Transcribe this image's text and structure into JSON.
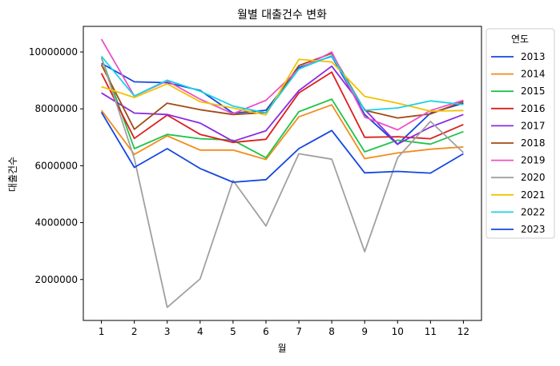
{
  "chart_data": {
    "type": "line",
    "title": "월별 대출건수 변화",
    "xlabel": "월",
    "ylabel": "대출건수",
    "x": [
      1,
      2,
      3,
      4,
      5,
      6,
      7,
      8,
      9,
      10,
      11,
      12
    ],
    "xlim": [
      0.45,
      12.55
    ],
    "ylim": [
      560000,
      10900000
    ],
    "yticks": [
      2000000,
      4000000,
      6000000,
      8000000,
      10000000
    ],
    "grid": false,
    "legend": {
      "title": "연도",
      "placement": "outside-right-top"
    },
    "series": [
      {
        "name": "2013",
        "color": "#1447e0",
        "values": [
          9600000,
          8950000,
          8920000,
          8650000,
          7850000,
          7950000,
          9450000,
          9850000,
          7800000,
          6750000,
          7850000,
          8200000
        ]
      },
      {
        "name": "2014",
        "color": "#f28c1a",
        "values": [
          7950000,
          6400000,
          7050000,
          6550000,
          6550000,
          6220000,
          7720000,
          8140000,
          6250000,
          6450000,
          6580000,
          6660000
        ]
      },
      {
        "name": "2015",
        "color": "#1ec44a",
        "values": [
          9800000,
          6600000,
          7100000,
          6950000,
          6900000,
          6280000,
          7900000,
          8340000,
          6490000,
          6900000,
          6760000,
          7200000
        ]
      },
      {
        "name": "2016",
        "color": "#dc1e1e",
        "values": [
          9250000,
          6960000,
          7780000,
          7100000,
          6820000,
          6930000,
          8560000,
          9290000,
          7000000,
          7020000,
          6950000,
          7450000
        ]
      },
      {
        "name": "2017",
        "color": "#8a2be2",
        "values": [
          8560000,
          7850000,
          7800000,
          7500000,
          6860000,
          7230000,
          8640000,
          9500000,
          7980000,
          6760000,
          7360000,
          7800000
        ]
      },
      {
        "name": "2018",
        "color": "#a04a12",
        "values": [
          9550000,
          7280000,
          8200000,
          7970000,
          7800000,
          7870000,
          9520000,
          9950000,
          7950000,
          7680000,
          7820000,
          8260000
        ]
      },
      {
        "name": "2019",
        "color": "#ef4fc6",
        "values": [
          10450000,
          8450000,
          8980000,
          8340000,
          7830000,
          8300000,
          9390000,
          10000000,
          7710000,
          7260000,
          7940000,
          8300000
        ]
      },
      {
        "name": "2020",
        "color": "#a0a0a0",
        "values": [
          9800000,
          6250000,
          1020000,
          2020000,
          5480000,
          3880000,
          6420000,
          6230000,
          2980000,
          6280000,
          7560000,
          6460000
        ]
      },
      {
        "name": "2021",
        "color": "#f5c000",
        "values": [
          8780000,
          8400000,
          8880000,
          8250000,
          8030000,
          7790000,
          9740000,
          9650000,
          8440000,
          8200000,
          7920000,
          7940000
        ]
      },
      {
        "name": "2022",
        "color": "#19d3e6",
        "values": [
          9850000,
          8450000,
          9010000,
          8620000,
          8100000,
          7860000,
          9400000,
          9870000,
          7950000,
          8030000,
          8280000,
          8150000
        ]
      },
      {
        "name": "2023",
        "color": "#1447e0",
        "values": [
          7880000,
          5940000,
          6600000,
          5900000,
          5420000,
          5510000,
          6600000,
          7240000,
          5750000,
          5800000,
          5740000,
          6420000
        ]
      }
    ]
  }
}
